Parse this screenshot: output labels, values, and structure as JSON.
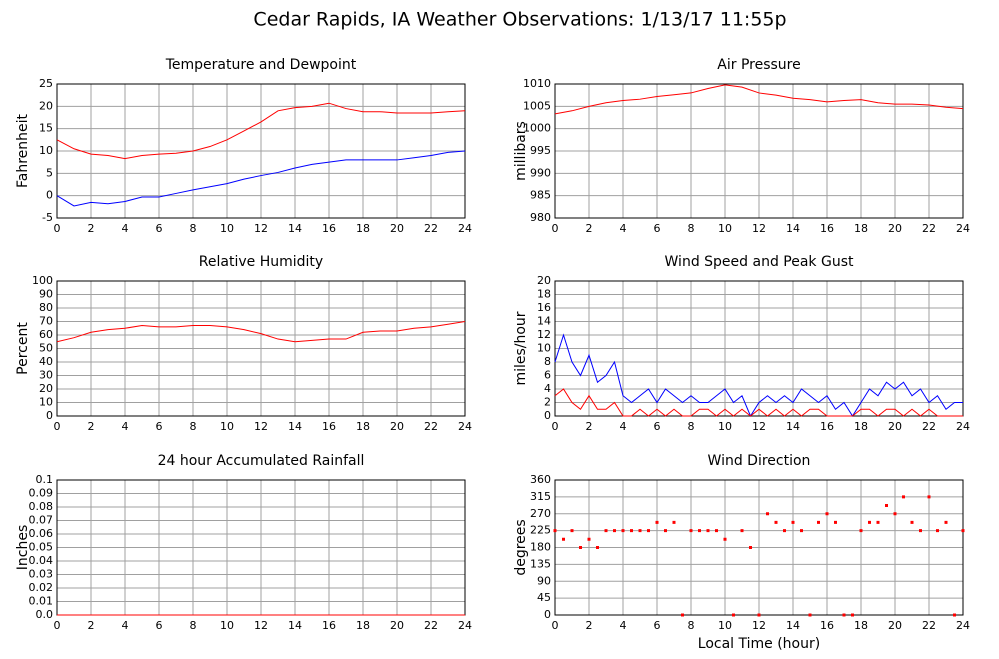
{
  "title": "Cedar Rapids, IA Weather Observations: 1/13/17 11:55p",
  "chart_data": [
    {
      "type": "line",
      "title": "Temperature and Dewpoint",
      "ylabel": "Fahrenheit",
      "x": [
        0,
        1,
        2,
        3,
        4,
        5,
        6,
        7,
        8,
        9,
        10,
        11,
        12,
        13,
        14,
        15,
        16,
        17,
        18,
        19,
        20,
        21,
        22,
        23,
        24
      ],
      "series": [
        {
          "color": "#ff0000",
          "values": [
            12.5,
            10.5,
            9.3,
            9,
            8.3,
            9,
            9.3,
            9.5,
            10,
            11,
            12.5,
            14.5,
            16.5,
            19,
            19.7,
            20,
            20.7,
            19.5,
            18.8,
            18.8,
            18.5,
            18.5,
            18.5,
            18.8,
            19
          ]
        },
        {
          "color": "#0000ff",
          "values": [
            0,
            -2.3,
            -1.5,
            -1.8,
            -1.3,
            -0.3,
            -0.3,
            0.5,
            1.3,
            2,
            2.7,
            3.7,
            4.5,
            5.2,
            6.2,
            7,
            7.5,
            8,
            8,
            8,
            8,
            8.5,
            9,
            9.7,
            10
          ]
        }
      ],
      "xlim": [
        0,
        24
      ],
      "xticks": [
        0,
        2,
        4,
        6,
        8,
        10,
        12,
        14,
        16,
        18,
        20,
        22,
        24
      ],
      "ylim": [
        -5,
        25
      ],
      "yticks": [
        -5,
        0,
        5,
        10,
        15,
        20,
        25
      ],
      "grid": true
    },
    {
      "type": "line",
      "title": "Air Pressure",
      "ylabel": "millibars",
      "x": [
        0,
        1,
        2,
        3,
        4,
        5,
        6,
        7,
        8,
        9,
        10,
        11,
        12,
        13,
        14,
        15,
        16,
        17,
        18,
        19,
        20,
        21,
        22,
        23,
        24
      ],
      "series": [
        {
          "color": "#ff0000",
          "values": [
            1003.3,
            1004,
            1005,
            1005.8,
            1006.3,
            1006.6,
            1007.2,
            1007.6,
            1008,
            1009,
            1009.8,
            1009.3,
            1008,
            1007.5,
            1006.8,
            1006.5,
            1006,
            1006.3,
            1006.5,
            1005.8,
            1005.5,
            1005.5,
            1005.3,
            1004.8,
            1004.5
          ]
        }
      ],
      "xlim": [
        0,
        24
      ],
      "xticks": [
        0,
        2,
        4,
        6,
        8,
        10,
        12,
        14,
        16,
        18,
        20,
        22,
        24
      ],
      "ylim": [
        980,
        1010
      ],
      "yticks": [
        980,
        985,
        990,
        995,
        1000,
        1005,
        1010
      ],
      "grid": true
    },
    {
      "type": "line",
      "title": "Relative Humidity",
      "ylabel": "Percent",
      "x": [
        0,
        1,
        2,
        3,
        4,
        5,
        6,
        7,
        8,
        9,
        10,
        11,
        12,
        13,
        14,
        15,
        16,
        17,
        18,
        19,
        20,
        21,
        22,
        23,
        24
      ],
      "series": [
        {
          "color": "#ff0000",
          "values": [
            55,
            58,
            62,
            64,
            65,
            67,
            66,
            66,
            67,
            67,
            66,
            64,
            61,
            57,
            55,
            56,
            57,
            57,
            62,
            63,
            63,
            65,
            66,
            68,
            70
          ]
        }
      ],
      "xlim": [
        0,
        24
      ],
      "xticks": [
        0,
        2,
        4,
        6,
        8,
        10,
        12,
        14,
        16,
        18,
        20,
        22,
        24
      ],
      "ylim": [
        0,
        100
      ],
      "yticks": [
        0,
        10,
        20,
        30,
        40,
        50,
        60,
        70,
        80,
        90,
        100
      ],
      "grid": true
    },
    {
      "type": "line",
      "title": "Wind Speed and Peak Gust",
      "ylabel": "miles/hour",
      "x": [
        0,
        0.5,
        1,
        1.5,
        2,
        2.5,
        3,
        3.5,
        4,
        4.5,
        5,
        5.5,
        6,
        6.5,
        7,
        7.5,
        8,
        8.5,
        9,
        9.5,
        10,
        10.5,
        11,
        11.5,
        12,
        12.5,
        13,
        13.5,
        14,
        14.5,
        15,
        15.5,
        16,
        16.5,
        17,
        17.5,
        18,
        18.5,
        19,
        19.5,
        20,
        20.5,
        21,
        21.5,
        22,
        22.5,
        23,
        23.5,
        24
      ],
      "series": [
        {
          "color": "#0000ff",
          "values": [
            8,
            12,
            8,
            6,
            9,
            5,
            6,
            8,
            3,
            2,
            3,
            4,
            2,
            4,
            3,
            2,
            3,
            2,
            2,
            3,
            4,
            2,
            3,
            0,
            2,
            3,
            2,
            3,
            2,
            4,
            3,
            2,
            3,
            1,
            2,
            0,
            2,
            4,
            3,
            5,
            4,
            5,
            3,
            4,
            2,
            3,
            1,
            2,
            2
          ]
        },
        {
          "color": "#ff0000",
          "values": [
            3,
            4,
            2,
            1,
            3,
            1,
            1,
            2,
            0,
            0,
            1,
            0,
            1,
            0,
            1,
            0,
            0,
            1,
            1,
            0,
            1,
            0,
            1,
            0,
            1,
            0,
            1,
            0,
            1,
            0,
            1,
            1,
            0,
            0,
            0,
            0,
            1,
            1,
            0,
            1,
            1,
            0,
            1,
            0,
            1,
            0,
            0,
            0,
            0
          ]
        }
      ],
      "xlim": [
        0,
        24
      ],
      "xticks": [
        0,
        2,
        4,
        6,
        8,
        10,
        12,
        14,
        16,
        18,
        20,
        22,
        24
      ],
      "ylim": [
        0,
        20
      ],
      "yticks": [
        0,
        2,
        4,
        6,
        8,
        10,
        12,
        14,
        16,
        18,
        20
      ],
      "grid": true
    },
    {
      "type": "line",
      "title": "24 hour Accumulated Rainfall",
      "ylabel": "Inches",
      "x": [
        0,
        24
      ],
      "series": [
        {
          "color": "#ff0000",
          "values": [
            0,
            0
          ]
        }
      ],
      "xlim": [
        0,
        24
      ],
      "xticks": [
        0,
        2,
        4,
        6,
        8,
        10,
        12,
        14,
        16,
        18,
        20,
        22,
        24
      ],
      "ylim": [
        0,
        0.1
      ],
      "yticks": [
        {
          "value": 0,
          "label": "0.0"
        },
        0.01,
        0.02,
        0.03,
        0.04,
        0.05,
        0.06,
        0.07,
        0.08,
        0.09,
        0.1
      ],
      "grid": true
    },
    {
      "type": "scatter",
      "title": "Wind Direction",
      "ylabel": "degrees",
      "xlabel": "Local Time (hour)",
      "x": [
        0,
        0.5,
        1,
        1.5,
        2,
        2.5,
        3,
        3.5,
        4,
        4.5,
        5,
        5.5,
        6,
        6.5,
        7,
        7.5,
        8,
        8.5,
        9,
        9.5,
        10,
        10.5,
        11,
        11.5,
        12,
        12.5,
        13,
        13.5,
        14,
        14.5,
        15,
        15.5,
        16,
        16.5,
        17,
        17.5,
        18,
        18.5,
        19,
        19.5,
        20,
        20.5,
        21,
        21.5,
        22,
        22.5,
        23,
        23.5,
        24
      ],
      "series": [
        {
          "color": "#ff0000",
          "values": [
            225,
            202,
            225,
            180,
            202,
            180,
            225,
            225,
            225,
            225,
            225,
            225,
            247,
            225,
            247,
            0,
            225,
            225,
            225,
            225,
            202,
            0,
            225,
            180,
            0,
            270,
            247,
            225,
            247,
            225,
            0,
            247,
            270,
            247,
            0,
            0,
            225,
            247,
            247,
            292,
            270,
            315,
            247,
            225,
            315,
            225,
            247,
            0,
            225
          ]
        }
      ],
      "xlim": [
        0,
        24
      ],
      "xticks": [
        0,
        2,
        4,
        6,
        8,
        10,
        12,
        14,
        16,
        18,
        20,
        22,
        24
      ],
      "ylim": [
        0,
        360
      ],
      "yticks": [
        0,
        45,
        90,
        135,
        180,
        225,
        270,
        315,
        360
      ],
      "grid": true
    }
  ]
}
